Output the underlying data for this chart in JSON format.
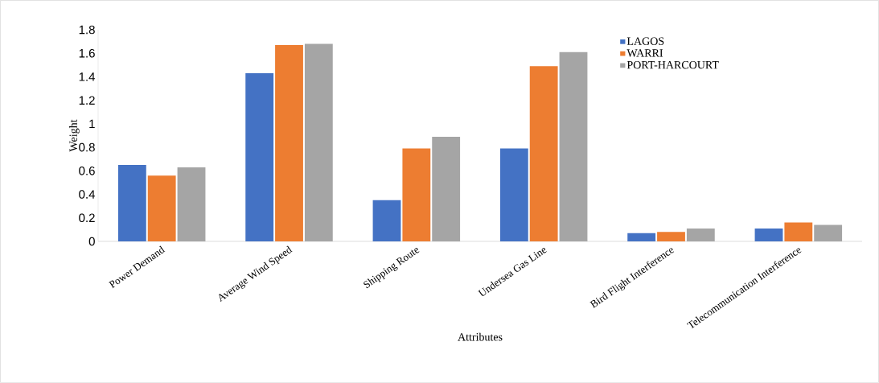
{
  "chart_data": {
    "type": "bar",
    "xlabel": "Attributes",
    "ylabel": "Weight",
    "categories": [
      "Power Demand",
      "Average Wind Speed",
      "Shipping Route",
      "Undersea Gas Line",
      "Bird Flight Interference",
      "Telecommunication Interference"
    ],
    "series": [
      {
        "name": "LAGOS",
        "color": "#4472c4",
        "values": [
          0.65,
          1.43,
          0.35,
          0.79,
          0.07,
          0.11
        ]
      },
      {
        "name": "WARRI",
        "color": "#ed7d31",
        "values": [
          0.56,
          1.67,
          0.79,
          1.49,
          0.08,
          0.16
        ]
      },
      {
        "name": "PORT-HARCOURT",
        "color": "#a5a5a5",
        "values": [
          0.63,
          1.68,
          0.89,
          1.61,
          0.11,
          0.14
        ]
      }
    ],
    "ylim": [
      0,
      1.8
    ],
    "yticks": [
      0,
      0.2,
      0.4,
      0.6,
      0.8,
      1,
      1.2,
      1.4,
      1.6,
      1.8
    ],
    "legend": "top right",
    "grid": false
  }
}
